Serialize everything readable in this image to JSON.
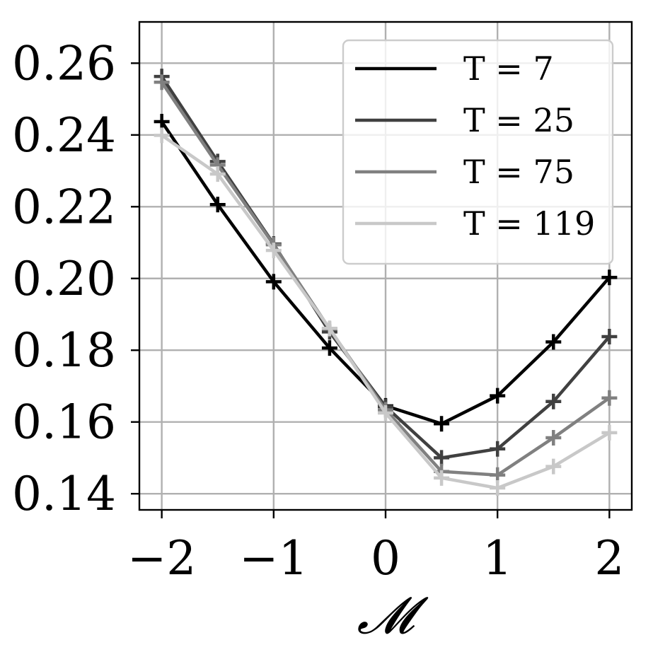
{
  "chart_data": {
    "type": "line",
    "title": "",
    "xlabel": "𝓜",
    "ylabel": "",
    "xlim": [
      -2.2,
      2.2
    ],
    "ylim": [
      0.1355,
      0.2715
    ],
    "xticks": [
      -2,
      -1,
      0,
      1,
      2
    ],
    "xtick_labels": [
      "−2",
      "−1",
      "0",
      "1",
      "2"
    ],
    "yticks": [
      0.14,
      0.16,
      0.18,
      0.2,
      0.22,
      0.24,
      0.26
    ],
    "ytick_labels": [
      "0.14",
      "0.16",
      "0.18",
      "0.20",
      "0.22",
      "0.24",
      "0.26"
    ],
    "grid": true,
    "legend_position": "top-right",
    "marker": "plus",
    "x": [
      -2,
      -1.5,
      -1,
      -0.5,
      0,
      0.5,
      1,
      1.5,
      2
    ],
    "series": [
      {
        "name": "T = 7",
        "color": "#000000",
        "values": [
          0.2437,
          0.2206,
          0.1991,
          0.1806,
          0.1645,
          0.1595,
          0.1673,
          0.1823,
          0.2003
        ]
      },
      {
        "name": "T = 25",
        "color": "#404040",
        "values": [
          0.2563,
          0.2326,
          0.2096,
          0.1851,
          0.1643,
          0.15,
          0.1525,
          0.1657,
          0.1838
        ]
      },
      {
        "name": "T = 75",
        "color": "#808080",
        "values": [
          0.2547,
          0.2316,
          0.2094,
          0.1859,
          0.1634,
          0.1462,
          0.1452,
          0.1556,
          0.1667
        ]
      },
      {
        "name": "T = 119",
        "color": "#c8c8c8",
        "values": [
          0.2399,
          0.2291,
          0.2078,
          0.1861,
          0.1625,
          0.1444,
          0.1416,
          0.1476,
          0.157
        ]
      }
    ]
  }
}
